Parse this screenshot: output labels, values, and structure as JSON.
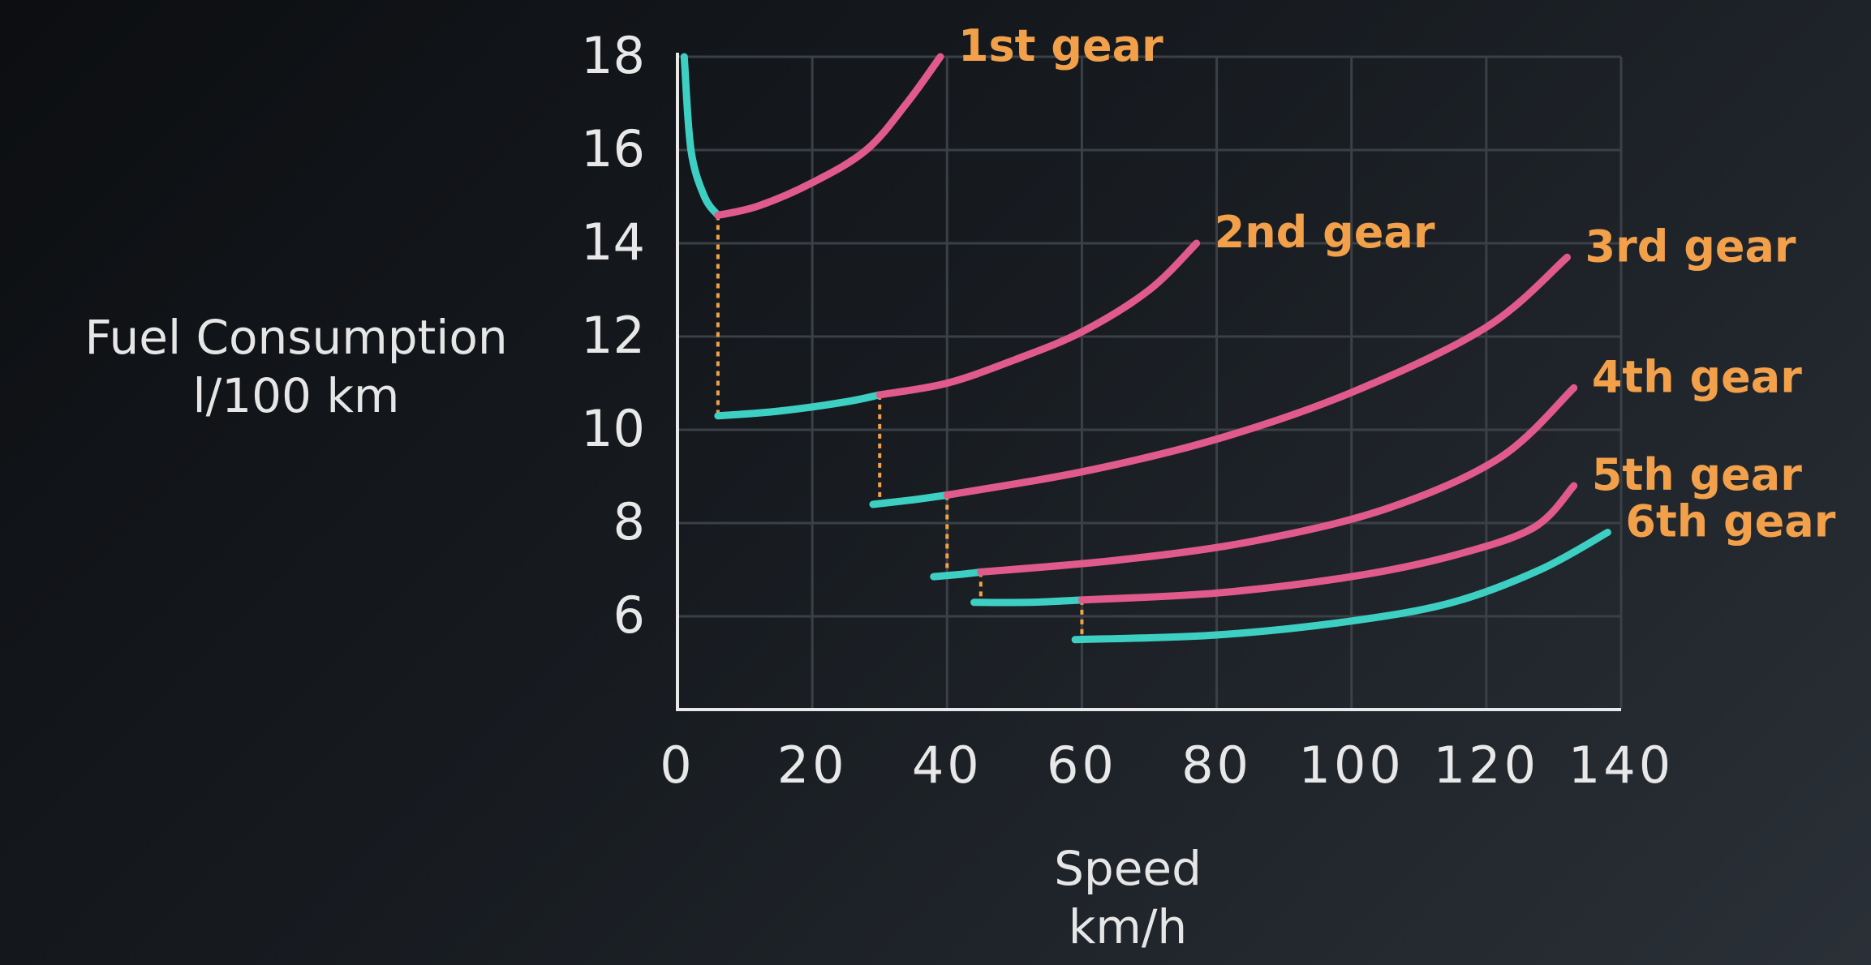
{
  "chart_data": {
    "type": "line",
    "title": "",
    "xlabel": [
      "Speed",
      "km/h"
    ],
    "ylabel": [
      "Fuel Consumption",
      "l/100 km"
    ],
    "xlim": [
      0,
      140
    ],
    "ylim": [
      4,
      18
    ],
    "xticks": [
      "0",
      "20",
      "40",
      "60",
      "80",
      "100",
      "120",
      "140"
    ],
    "yticks": [
      "6",
      "8",
      "10",
      "12",
      "14",
      "16",
      "18"
    ],
    "grid": true,
    "colors": {
      "optimal": "#3ecfc3",
      "non_optimal": "#e05a8c",
      "label": "#f2a04a",
      "transition": "#f2a04a",
      "axis": "#e8e8e8",
      "grid": "#3a4046"
    },
    "series": [
      {
        "name": "1st gear",
        "teal_points": [
          [
            1,
            18
          ],
          [
            2,
            16
          ],
          [
            4,
            15
          ],
          [
            6,
            14.6
          ]
        ],
        "pink_points": [
          [
            6,
            14.6
          ],
          [
            12,
            14.8
          ],
          [
            20,
            15.3
          ],
          [
            28,
            16
          ],
          [
            34,
            17
          ],
          [
            39,
            18
          ]
        ]
      },
      {
        "name": "2nd gear",
        "teal_points": [
          [
            6,
            10.3
          ],
          [
            15,
            10.4
          ],
          [
            25,
            10.6
          ],
          [
            30,
            10.75
          ]
        ],
        "pink_points": [
          [
            30,
            10.75
          ],
          [
            40,
            11
          ],
          [
            50,
            11.5
          ],
          [
            60,
            12.1
          ],
          [
            70,
            13
          ],
          [
            77,
            14
          ]
        ]
      },
      {
        "name": "3rd gear",
        "teal_points": [
          [
            29,
            8.4
          ],
          [
            35,
            8.5
          ],
          [
            40,
            8.6
          ]
        ],
        "pink_points": [
          [
            40,
            8.6
          ],
          [
            60,
            9.1
          ],
          [
            80,
            9.8
          ],
          [
            100,
            10.8
          ],
          [
            120,
            12.2
          ],
          [
            132,
            13.7
          ]
        ]
      },
      {
        "name": "4th gear",
        "teal_points": [
          [
            38,
            6.85
          ],
          [
            42,
            6.9
          ],
          [
            45,
            6.95
          ]
        ],
        "pink_points": [
          [
            45,
            6.95
          ],
          [
            65,
            7.2
          ],
          [
            85,
            7.6
          ],
          [
            105,
            8.3
          ],
          [
            122,
            9.4
          ],
          [
            133,
            10.9
          ]
        ]
      },
      {
        "name": "5th gear",
        "teal_points": [
          [
            44,
            6.3
          ],
          [
            52,
            6.3
          ],
          [
            60,
            6.35
          ]
        ],
        "pink_points": [
          [
            60,
            6.35
          ],
          [
            80,
            6.5
          ],
          [
            100,
            6.85
          ],
          [
            115,
            7.3
          ],
          [
            127,
            7.9
          ],
          [
            133,
            8.8
          ]
        ]
      },
      {
        "name": "6th gear",
        "teal_points": [
          [
            59,
            5.5
          ],
          [
            80,
            5.6
          ],
          [
            100,
            5.9
          ],
          [
            115,
            6.3
          ],
          [
            128,
            7
          ],
          [
            138,
            7.8
          ]
        ],
        "pink_points": []
      }
    ],
    "transitions": [
      {
        "x": 6,
        "y_top": 14.6,
        "y_bottom": 10.3
      },
      {
        "x": 30,
        "y_top": 10.75,
        "y_bottom": 8.4
      },
      {
        "x": 40,
        "y_top": 8.6,
        "y_bottom": 6.85
      },
      {
        "x": 45,
        "y_top": 6.95,
        "y_bottom": 6.3
      },
      {
        "x": 60,
        "y_top": 6.35,
        "y_bottom": 5.5
      }
    ]
  }
}
